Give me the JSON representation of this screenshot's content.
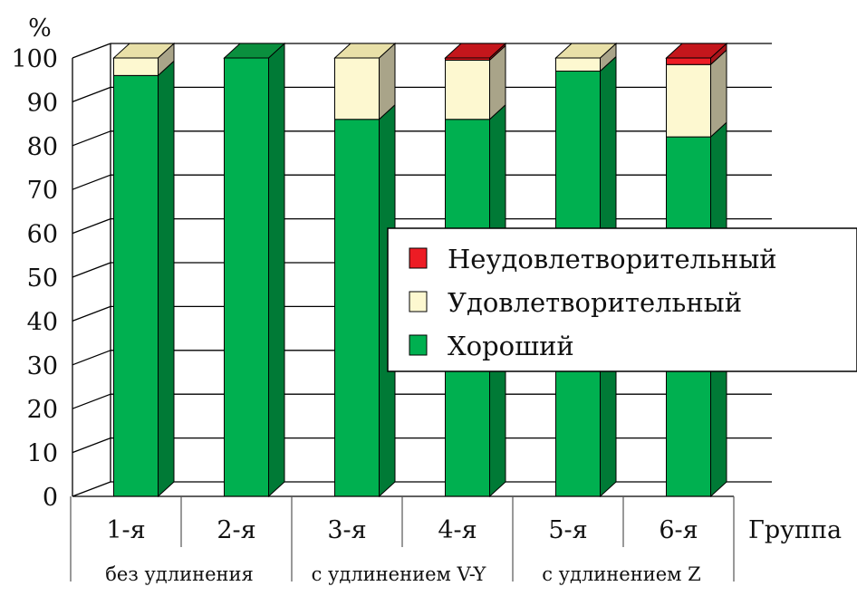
{
  "chart_data": {
    "type": "bar",
    "stacked": true,
    "three_d": true,
    "ylabel": "%",
    "xlabel": "Группа",
    "ylim": [
      0,
      100
    ],
    "yticks": [
      0,
      10,
      20,
      30,
      40,
      50,
      60,
      70,
      80,
      90,
      100
    ],
    "categories": [
      "1-я",
      "2-я",
      "3-я",
      "4-я",
      "5-я",
      "6-я"
    ],
    "category_groups": [
      {
        "label": "без удлинения",
        "categories": [
          "1-я",
          "2-я"
        ]
      },
      {
        "label": "с удлинением V-Y",
        "categories": [
          "3-я",
          "4-я"
        ]
      },
      {
        "label": "с удлинением Z",
        "categories": [
          "5-я",
          "6-я"
        ]
      }
    ],
    "series": [
      {
        "name": "Хороший",
        "color": "#00b050",
        "values": [
          96,
          100,
          86,
          86,
          97,
          82
        ]
      },
      {
        "name": "Удовлетворительный",
        "color": "#fdf8d0",
        "values": [
          4,
          0,
          14,
          13.5,
          3,
          16.5
        ]
      },
      {
        "name": "Неудовлетворительный",
        "color": "#ed1c24",
        "values": [
          0,
          0,
          0,
          0.5,
          0,
          1.5
        ]
      }
    ],
    "legend_order": [
      "Неудовлетворительный",
      "Удовлетворительный",
      "Хороший"
    ],
    "legend_position": "right",
    "grid": true
  }
}
